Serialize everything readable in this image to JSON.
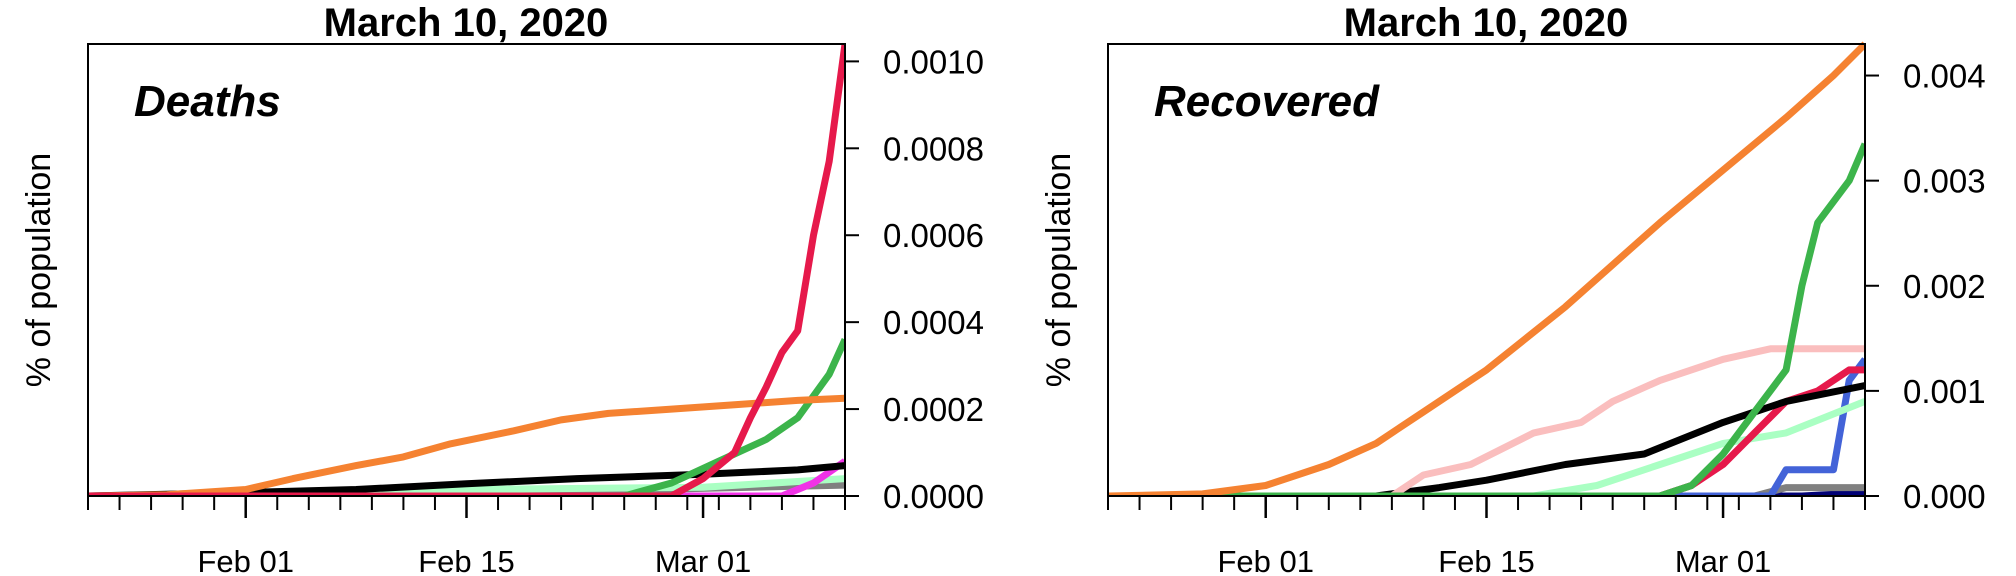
{
  "chart_data": [
    {
      "type": "line",
      "title": "March 10, 2020",
      "panel_label": "Deaths",
      "ylabel": "% of population",
      "yaxis_side": "right",
      "xlim": [
        "2020-01-22",
        "2020-03-10"
      ],
      "ylim": [
        0,
        0.00104
      ],
      "yticks": [
        "0.0000",
        "0.0002",
        "0.0004",
        "0.0006",
        "0.0008",
        "0.0010"
      ],
      "xticks": [
        {
          "date": "2020-02-01",
          "label": "Feb 01"
        },
        {
          "date": "2020-02-15",
          "label": "Feb 15"
        },
        {
          "date": "2020-03-01",
          "label": "Mar 01"
        }
      ],
      "minor_tick_interval_days": 2,
      "series": [
        {
          "color": "#808080",
          "points": [
            [
              "2020-01-22",
              0.0
            ],
            [
              "2020-02-10",
              1e-06
            ],
            [
              "2020-03-10",
              2.5e-05
            ]
          ]
        },
        {
          "color": "#aaffc3",
          "points": [
            [
              "2020-01-22",
              0.0
            ],
            [
              "2020-02-01",
              3e-06
            ],
            [
              "2020-02-15",
              1.5e-05
            ],
            [
              "2020-03-01",
              2e-05
            ],
            [
              "2020-03-10",
              4e-05
            ]
          ]
        },
        {
          "color": "#f032e6",
          "points": [
            [
              "2020-01-22",
              0.0
            ],
            [
              "2020-03-06",
              0.0
            ],
            [
              "2020-03-08",
              3e-05
            ],
            [
              "2020-03-10",
              8e-05
            ]
          ]
        },
        {
          "color": "#000000",
          "points": [
            [
              "2020-01-22",
              0.0
            ],
            [
              "2020-02-01",
              8e-06
            ],
            [
              "2020-02-08",
              1.5e-05
            ],
            [
              "2020-02-15",
              2.8e-05
            ],
            [
              "2020-02-22",
              4e-05
            ],
            [
              "2020-03-01",
              5e-05
            ],
            [
              "2020-03-07",
              6e-05
            ],
            [
              "2020-03-10",
              7e-05
            ]
          ]
        },
        {
          "color": "#3cb44b",
          "points": [
            [
              "2020-01-22",
              0.0
            ],
            [
              "2020-02-25",
              0.0
            ],
            [
              "2020-02-28",
              3e-05
            ],
            [
              "2020-03-02",
              8e-05
            ],
            [
              "2020-03-05",
              0.00013
            ],
            [
              "2020-03-07",
              0.00018
            ],
            [
              "2020-03-09",
              0.00028
            ],
            [
              "2020-03-10",
              0.00036
            ]
          ]
        },
        {
          "color": "#f58231",
          "points": [
            [
              "2020-01-22",
              0.0
            ],
            [
              "2020-01-27",
              3e-06
            ],
            [
              "2020-02-01",
              1.5e-05
            ],
            [
              "2020-02-04",
              4e-05
            ],
            [
              "2020-02-08",
              7e-05
            ],
            [
              "2020-02-11",
              9e-05
            ],
            [
              "2020-02-14",
              0.00012
            ],
            [
              "2020-02-18",
              0.00015
            ],
            [
              "2020-02-21",
              0.000175
            ],
            [
              "2020-02-24",
              0.00019
            ],
            [
              "2020-02-28",
              0.0002
            ],
            [
              "2020-03-03",
              0.00021
            ],
            [
              "2020-03-07",
              0.00022
            ],
            [
              "2020-03-10",
              0.000225
            ]
          ]
        },
        {
          "color": "#e6194b",
          "points": [
            [
              "2020-01-22",
              0.0
            ],
            [
              "2020-02-28",
              0.0
            ],
            [
              "2020-03-01",
              4e-05
            ],
            [
              "2020-03-03",
              0.0001
            ],
            [
              "2020-03-04",
              0.00018
            ],
            [
              "2020-03-05",
              0.00025
            ],
            [
              "2020-03-06",
              0.00033
            ],
            [
              "2020-03-07",
              0.00038
            ],
            [
              "2020-03-08",
              0.0006
            ],
            [
              "2020-03-09",
              0.00077
            ],
            [
              "2020-03-10",
              0.00104
            ]
          ]
        }
      ]
    },
    {
      "type": "line",
      "title": "March 10, 2020",
      "panel_label": "Recovered",
      "ylabel": "% of population",
      "yaxis_side": "right",
      "xlim": [
        "2020-01-22",
        "2020-03-10"
      ],
      "ylim": [
        0,
        0.0043
      ],
      "yticks": [
        "0.000",
        "0.001",
        "0.002",
        "0.003",
        "0.004"
      ],
      "xticks": [
        {
          "date": "2020-02-01",
          "label": "Feb 01"
        },
        {
          "date": "2020-02-15",
          "label": "Feb 15"
        },
        {
          "date": "2020-03-01",
          "label": "Mar 01"
        }
      ],
      "minor_tick_interval_days": 2,
      "series": [
        {
          "color": "#000075",
          "points": [
            [
              "2020-01-22",
              0.0
            ],
            [
              "2020-03-06",
              0.0
            ],
            [
              "2020-03-10",
              3e-05
            ]
          ]
        },
        {
          "color": "#808080",
          "points": [
            [
              "2020-01-22",
              0.0
            ],
            [
              "2020-03-03",
              0.0
            ],
            [
              "2020-03-05",
              8e-05
            ],
            [
              "2020-03-10",
              8e-05
            ]
          ]
        },
        {
          "color": "#4363d8",
          "points": [
            [
              "2020-01-22",
              0.0
            ],
            [
              "2020-03-04",
              0.0
            ],
            [
              "2020-03-05",
              0.00025
            ],
            [
              "2020-03-08",
              0.00025
            ],
            [
              "2020-03-09",
              0.0011
            ],
            [
              "2020-03-10",
              0.0013
            ]
          ]
        },
        {
          "color": "#aaffc3",
          "points": [
            [
              "2020-01-22",
              0.0
            ],
            [
              "2020-02-18",
              0.0
            ],
            [
              "2020-02-22",
              0.0001
            ],
            [
              "2020-02-26",
              0.0003
            ],
            [
              "2020-03-01",
              0.0005
            ],
            [
              "2020-03-05",
              0.0006
            ],
            [
              "2020-03-10",
              0.0009
            ]
          ]
        },
        {
          "color": "#e6194b",
          "points": [
            [
              "2020-01-22",
              0.0
            ],
            [
              "2020-02-26",
              0.0
            ],
            [
              "2020-02-28",
              0.0001
            ],
            [
              "2020-03-01",
              0.0003
            ],
            [
              "2020-03-03",
              0.0006
            ],
            [
              "2020-03-05",
              0.0009
            ],
            [
              "2020-03-07",
              0.001
            ],
            [
              "2020-03-09",
              0.0012
            ],
            [
              "2020-03-10",
              0.0012
            ]
          ]
        },
        {
          "color": "#000000",
          "points": [
            [
              "2020-01-22",
              0.0
            ],
            [
              "2020-02-08",
              0.0
            ],
            [
              "2020-02-12",
              8e-05
            ],
            [
              "2020-02-15",
              0.00015
            ],
            [
              "2020-02-20",
              0.0003
            ],
            [
              "2020-02-25",
              0.0004
            ],
            [
              "2020-03-01",
              0.0007
            ],
            [
              "2020-03-05",
              0.0009
            ],
            [
              "2020-03-10",
              0.00105
            ]
          ]
        },
        {
          "color": "#fabebe",
          "points": [
            [
              "2020-01-22",
              0.0
            ],
            [
              "2020-02-09",
              0.0
            ],
            [
              "2020-02-11",
              0.0002
            ],
            [
              "2020-02-14",
              0.0003
            ],
            [
              "2020-02-18",
              0.0006
            ],
            [
              "2020-02-21",
              0.0007
            ],
            [
              "2020-02-23",
              0.0009
            ],
            [
              "2020-02-26",
              0.0011
            ],
            [
              "2020-03-01",
              0.0013
            ],
            [
              "2020-03-04",
              0.0014
            ],
            [
              "2020-03-10",
              0.0014
            ]
          ]
        },
        {
          "color": "#3cb44b",
          "points": [
            [
              "2020-01-22",
              0.0
            ],
            [
              "2020-02-26",
              0.0
            ],
            [
              "2020-02-28",
              0.0001
            ],
            [
              "2020-03-01",
              0.0004
            ],
            [
              "2020-03-03",
              0.0008
            ],
            [
              "2020-03-05",
              0.0012
            ],
            [
              "2020-03-06",
              0.002
            ],
            [
              "2020-03-07",
              0.0026
            ],
            [
              "2020-03-09",
              0.003
            ],
            [
              "2020-03-10",
              0.00335
            ]
          ]
        },
        {
          "color": "#f58231",
          "points": [
            [
              "2020-01-22",
              0.0
            ],
            [
              "2020-01-28",
              2e-05
            ],
            [
              "2020-02-01",
              0.0001
            ],
            [
              "2020-02-05",
              0.0003
            ],
            [
              "2020-02-08",
              0.0005
            ],
            [
              "2020-02-11",
              0.0008
            ],
            [
              "2020-02-15",
              0.0012
            ],
            [
              "2020-02-20",
              0.0018
            ],
            [
              "2020-02-23",
              0.0022
            ],
            [
              "2020-02-26",
              0.0026
            ],
            [
              "2020-03-01",
              0.0031
            ],
            [
              "2020-03-05",
              0.0036
            ],
            [
              "2020-03-08",
              0.004
            ],
            [
              "2020-03-10",
              0.0043
            ]
          ]
        }
      ]
    }
  ]
}
